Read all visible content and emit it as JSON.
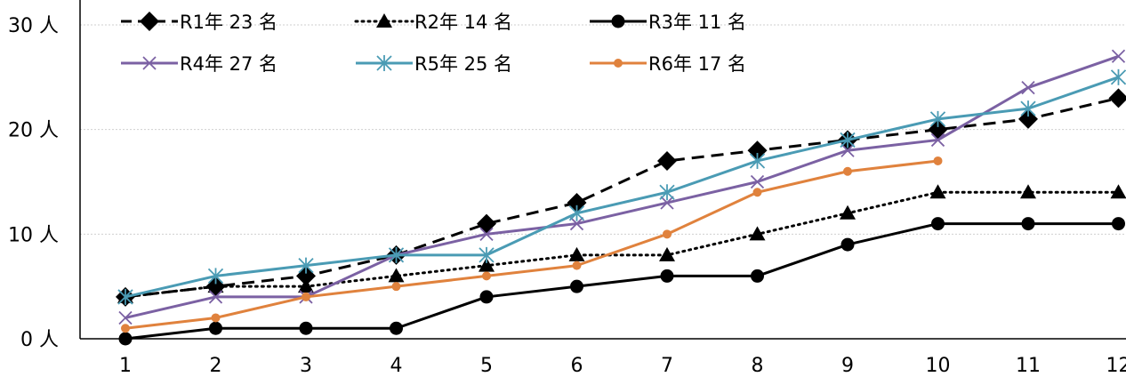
{
  "chart_data": {
    "type": "line",
    "x": [
      1,
      2,
      3,
      4,
      5,
      6,
      7,
      8,
      9,
      10,
      11,
      12
    ],
    "ylim": [
      0,
      30
    ],
    "yticks": [
      0,
      10,
      20,
      30
    ],
    "ytick_suffix": " 人",
    "grid": true,
    "legend_position": "top",
    "series": [
      {
        "name": "R1年 23 名",
        "color": "#000000",
        "dash": "dashed",
        "marker": "diamond",
        "values": [
          4,
          5,
          6,
          8,
          11,
          13,
          17,
          18,
          19,
          20,
          21,
          23
        ]
      },
      {
        "name": "R2年 14 名",
        "color": "#000000",
        "dash": "dotted",
        "marker": "triangle",
        "values": [
          4,
          5,
          5,
          6,
          7,
          8,
          8,
          10,
          12,
          14,
          14,
          14
        ]
      },
      {
        "name": "R3年 11 名",
        "color": "#000000",
        "dash": "solid",
        "marker": "circle",
        "values": [
          0,
          1,
          1,
          1,
          4,
          5,
          6,
          6,
          9,
          11,
          11,
          11
        ]
      },
      {
        "name": "R4年 27 名",
        "color": "#7b61a3",
        "dash": "solid",
        "marker": "x",
        "values": [
          2,
          4,
          4,
          8,
          10,
          11,
          13,
          15,
          18,
          19,
          24,
          27
        ]
      },
      {
        "name": "R5年 25 名",
        "color": "#4a9bb4",
        "dash": "solid",
        "marker": "asterisk",
        "values": [
          4,
          6,
          7,
          8,
          8,
          12,
          14,
          17,
          19,
          21,
          22,
          25
        ]
      },
      {
        "name": "R6年 17 名",
        "color": "#e0823d",
        "dash": "solid",
        "marker": "small-circle",
        "values": [
          1,
          2,
          4,
          5,
          6,
          7,
          10,
          14,
          16,
          17,
          null,
          null
        ]
      }
    ]
  }
}
